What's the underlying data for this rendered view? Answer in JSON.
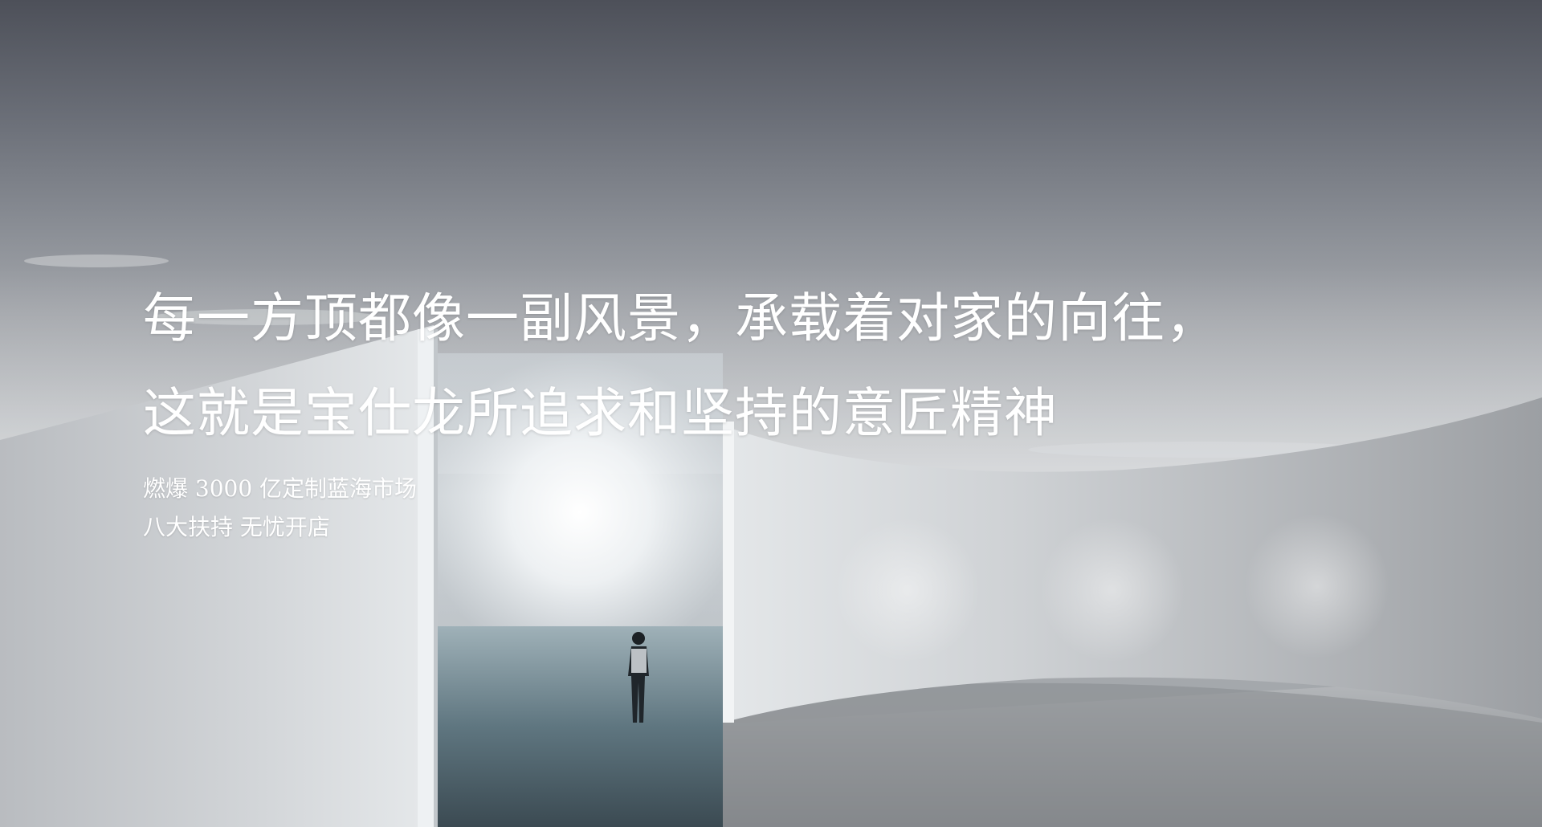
{
  "hero": {
    "headline_line1": "每一方顶都像一副风景，承载着对家的向往，",
    "headline_line2": "这就是宝仕龙所追求和坚持的意匠精神",
    "subline_line1": "燃爆 3000 亿定制蓝海市场",
    "subline_line2": "八大扶持 无忧开店"
  }
}
